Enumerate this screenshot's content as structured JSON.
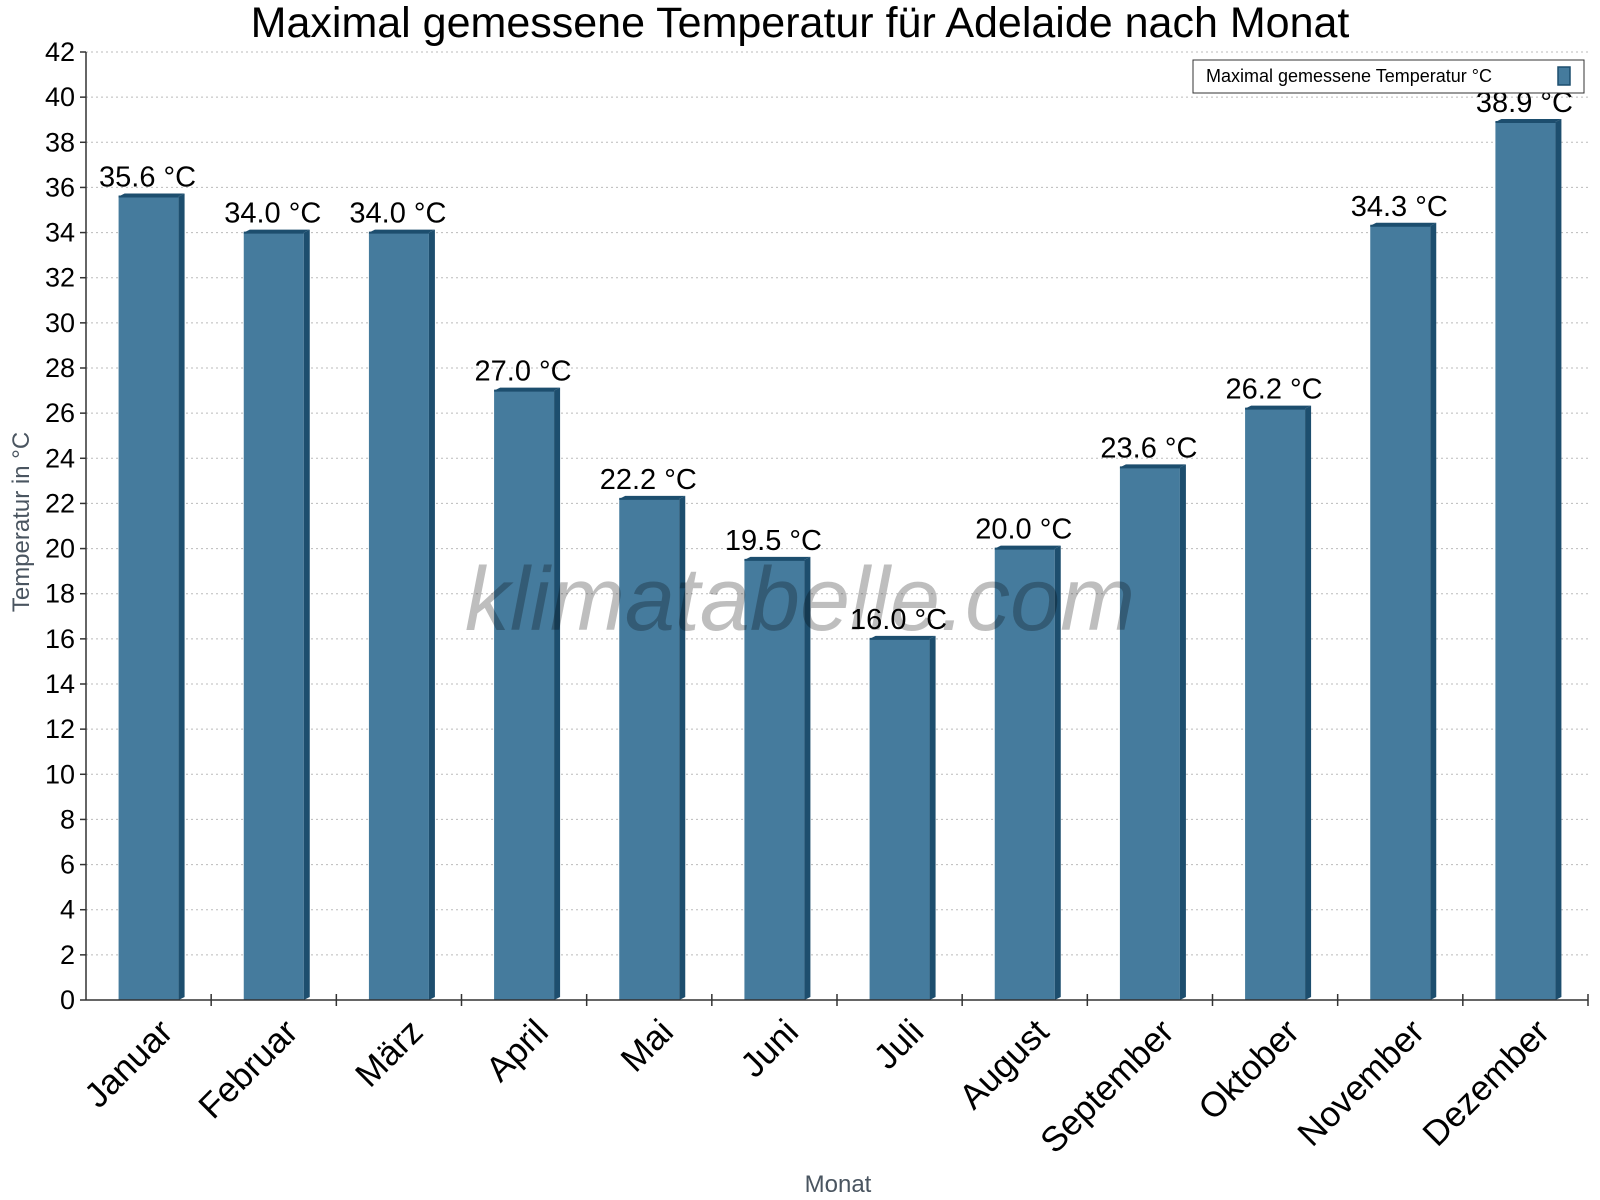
{
  "chart_data": {
    "type": "bar",
    "title": "Maximal gemessene Temperatur für Adelaide nach Monat",
    "xlabel": "Monat",
    "ylabel": "Temperatur in °C",
    "ylim": [
      0,
      42
    ],
    "ytick_step": 2,
    "grid": true,
    "legend_position": "top-right",
    "categories": [
      "Januar",
      "Februar",
      "März",
      "April",
      "Mai",
      "Juni",
      "Juli",
      "August",
      "September",
      "Oktober",
      "November",
      "Dezember"
    ],
    "series": [
      {
        "name": "Maximal gemessene Temperatur °C",
        "values": [
          35.6,
          34.0,
          34.0,
          27.0,
          22.2,
          19.5,
          16.0,
          20.0,
          23.6,
          26.2,
          34.3,
          38.9
        ],
        "data_labels": [
          "35.6 °C",
          "34.0 °C",
          "34.0 °C",
          "27.0 °C",
          "22.2 °C",
          "19.5 °C",
          "16.0 °C",
          "20.0 °C",
          "23.6 °C",
          "26.2 °C",
          "34.3 °C",
          "38.9 °C"
        ]
      }
    ],
    "colors": {
      "bar": "#457b9d",
      "bar_side": "#1d4e6e",
      "bar_top": "#1d4e6e",
      "grid": "#bbbbbb"
    }
  },
  "watermark": "klimatabelle.com"
}
